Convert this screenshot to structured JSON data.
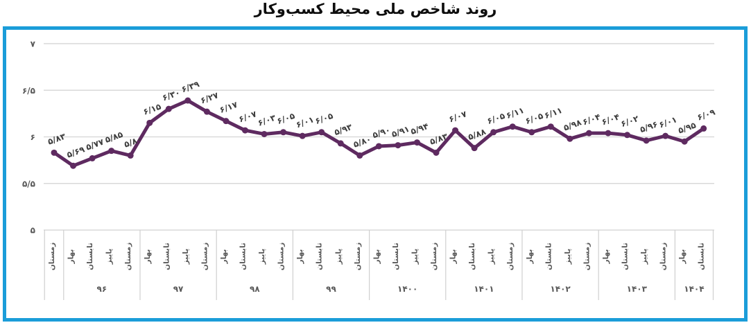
{
  "title": "روند شاخص ملی محیط کسب‌وکار",
  "chart_data": {
    "type": "line",
    "title": "روند شاخص ملی محیط کسب‌وکار",
    "xlabel": "",
    "ylabel": "",
    "ylim": [
      5,
      7
    ],
    "grid": true,
    "legend": false,
    "decimal_separator": "/",
    "yticks": [
      {
        "value": 7,
        "label": "۷"
      },
      {
        "value": 6.5,
        "label": "۶/۵"
      },
      {
        "value": 6,
        "label": "۶"
      },
      {
        "value": 5.5,
        "label": "۵/۵"
      },
      {
        "value": 5,
        "label": "۵"
      }
    ],
    "colors": {
      "line": "#5e2a60",
      "marker": "#5e2a60",
      "gridline": "#d9d9d9",
      "axis_text": "#595959",
      "data_label": "#3d3d3d",
      "table_line": "#cfcfcf",
      "frame_border": "#1b9dd9",
      "title_text": "#0e0e0e"
    },
    "points": [
      {
        "year": "",
        "season": "زمستان",
        "value": 5.83,
        "label": "۵/۸۳"
      },
      {
        "year": "۹۶",
        "season": "بهار",
        "value": 5.69,
        "label": "۵/۶۹"
      },
      {
        "year": "۹۶",
        "season": "تابستان",
        "value": 5.77,
        "label": "۵/۷۷"
      },
      {
        "year": "۹۶",
        "season": "پاییز",
        "value": 5.85,
        "label": "۵/۸۵"
      },
      {
        "year": "۹۶",
        "season": "زمستان",
        "value": 5.8,
        "label": "۵/۸۰"
      },
      {
        "year": "۹۷",
        "season": "بهار",
        "value": 6.15,
        "label": "۶/۱۵"
      },
      {
        "year": "۹۷",
        "season": "تابستان",
        "value": 6.3,
        "label": "۶/۳۰"
      },
      {
        "year": "۹۷",
        "season": "پاییز",
        "value": 6.39,
        "label": "۶/۳۹"
      },
      {
        "year": "۹۷",
        "season": "زمستان",
        "value": 6.27,
        "label": "۶/۲۷"
      },
      {
        "year": "۹۸",
        "season": "بهار",
        "value": 6.17,
        "label": "۶/۱۷"
      },
      {
        "year": "۹۸",
        "season": "تابستان",
        "value": 6.07,
        "label": "۶/۰۷"
      },
      {
        "year": "۹۸",
        "season": "پاییز",
        "value": 6.03,
        "label": "۶/۰۳"
      },
      {
        "year": "۹۸",
        "season": "زمستان",
        "value": 6.05,
        "label": "۶/۰۵"
      },
      {
        "year": "۹۹",
        "season": "بهار",
        "value": 6.01,
        "label": "۶/۰۱"
      },
      {
        "year": "۹۹",
        "season": "تابستان",
        "value": 6.05,
        "label": "۶/۰۵"
      },
      {
        "year": "۹۹",
        "season": "پاییز",
        "value": 5.93,
        "label": "۵/۹۳"
      },
      {
        "year": "۹۹",
        "season": "زمستان",
        "value": 5.8,
        "label": "۵/۸۰"
      },
      {
        "year": "۱۴۰۰",
        "season": "بهار",
        "value": 5.9,
        "label": "۵/۹۰"
      },
      {
        "year": "۱۴۰۰",
        "season": "تابستان",
        "value": 5.91,
        "label": "۵/۹۱"
      },
      {
        "year": "۱۴۰۰",
        "season": "پاییز",
        "value": 5.94,
        "label": "۵/۹۴"
      },
      {
        "year": "۱۴۰۰",
        "season": "زمستان",
        "value": 5.83,
        "label": "۵/۸۳"
      },
      {
        "year": "۱۴۰۱",
        "season": "بهار",
        "value": 6.07,
        "label": "۶/۰۷"
      },
      {
        "year": "۱۴۰۱",
        "season": "تابستان",
        "value": 5.88,
        "label": "۵/۸۸"
      },
      {
        "year": "۱۴۰۱",
        "season": "پاییز",
        "value": 6.05,
        "label": "۶/۰۵"
      },
      {
        "year": "۱۴۰۱",
        "season": "زمستان",
        "value": 6.11,
        "label": "۶/۱۱"
      },
      {
        "year": "۱۴۰۲",
        "season": "بهار",
        "value": 6.05,
        "label": "۶/۰۵"
      },
      {
        "year": "۱۴۰۲",
        "season": "تابستان",
        "value": 6.11,
        "label": "۶/۱۱"
      },
      {
        "year": "۱۴۰۲",
        "season": "پاییز",
        "value": 5.98,
        "label": "۵/۹۸"
      },
      {
        "year": "۱۴۰۲",
        "season": "زمستان",
        "value": 6.04,
        "label": "۶/۰۴"
      },
      {
        "year": "۱۴۰۳",
        "season": "بهار",
        "value": 6.04,
        "label": "۶/۰۴"
      },
      {
        "year": "۱۴۰۳",
        "season": "تابستان",
        "value": 6.02,
        "label": "۶/۰۲"
      },
      {
        "year": "۱۴۰۳",
        "season": "پاییز",
        "value": 5.96,
        "label": "۵/۹۶"
      },
      {
        "year": "۱۴۰۳",
        "season": "زمستان",
        "value": 6.01,
        "label": "۶/۰۱"
      },
      {
        "year": "۱۴۰۴",
        "season": "بهار",
        "value": 5.95,
        "label": "۵/۹۵"
      },
      {
        "year": "۱۴۰۴",
        "season": "تابستان",
        "value": 6.09,
        "label": "۶/۰۹"
      }
    ]
  }
}
